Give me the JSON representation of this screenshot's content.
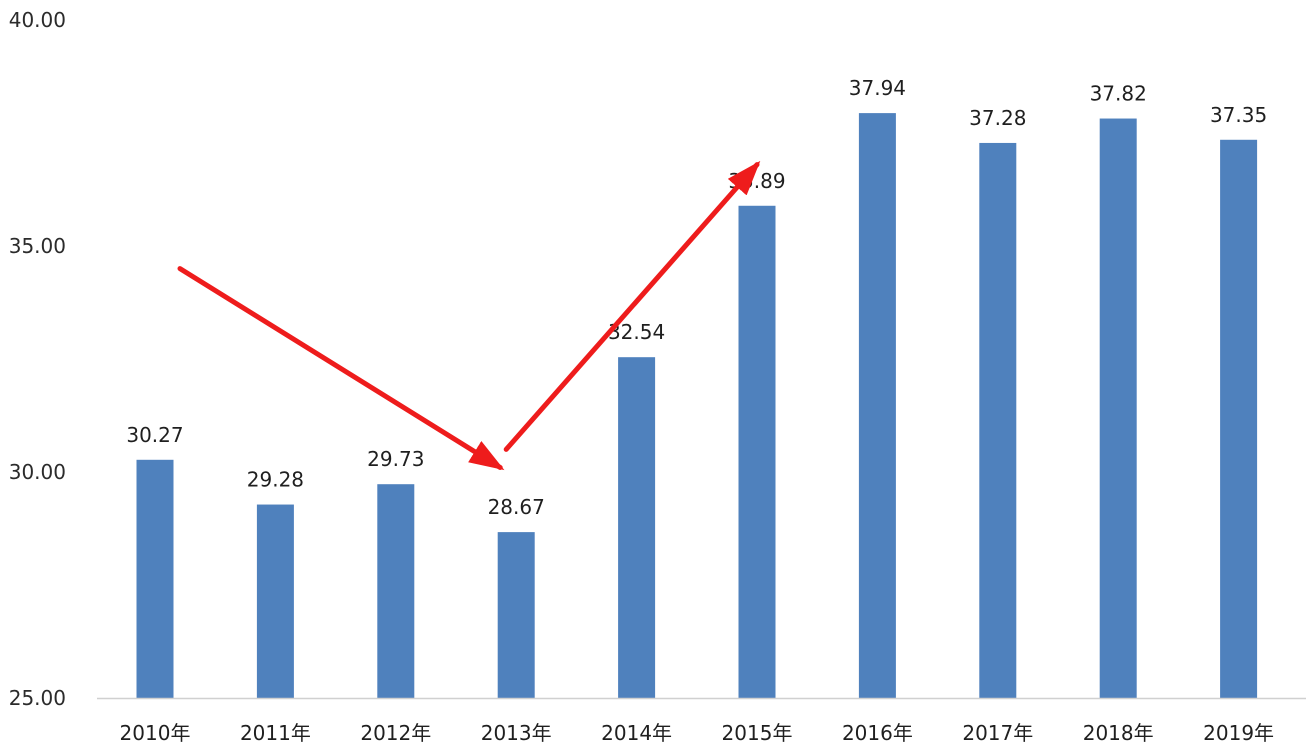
{
  "chart_data": {
    "type": "bar",
    "categories": [
      "2010年",
      "2011年",
      "2012年",
      "2013年",
      "2014年",
      "2015年",
      "2016年",
      "2017年",
      "2018年",
      "2019年"
    ],
    "values": [
      30.27,
      29.28,
      29.73,
      28.67,
      32.54,
      35.89,
      37.94,
      37.28,
      37.82,
      37.35
    ],
    "data_labels": [
      "30.27",
      "29.28",
      "29.73",
      "28.67",
      "32.54",
      "35.89",
      "37.94",
      "37.28",
      "37.82",
      "37.35"
    ],
    "y_ticks": [
      25,
      30,
      35,
      40
    ],
    "y_tick_labels": [
      "25.00",
      "30.00",
      "35.00",
      "40.00"
    ],
    "ylim": [
      25,
      40
    ],
    "grid": false,
    "legend": "none",
    "colors": {
      "bar": "#4f81bd",
      "arrow": "#ee1c1c",
      "axis": "#d0d0d0"
    },
    "annotations": [
      {
        "type": "arrow",
        "from": {
          "x": "2010年",
          "y": 34.5
        },
        "to": {
          "x": "2013年",
          "y": 30.1
        },
        "color": "#ee1c1c"
      },
      {
        "type": "arrow",
        "from": {
          "x": "2013年",
          "y": 30.5
        },
        "to": {
          "x": "2015年",
          "y": 36.8
        },
        "color": "#ee1c1c"
      }
    ]
  }
}
